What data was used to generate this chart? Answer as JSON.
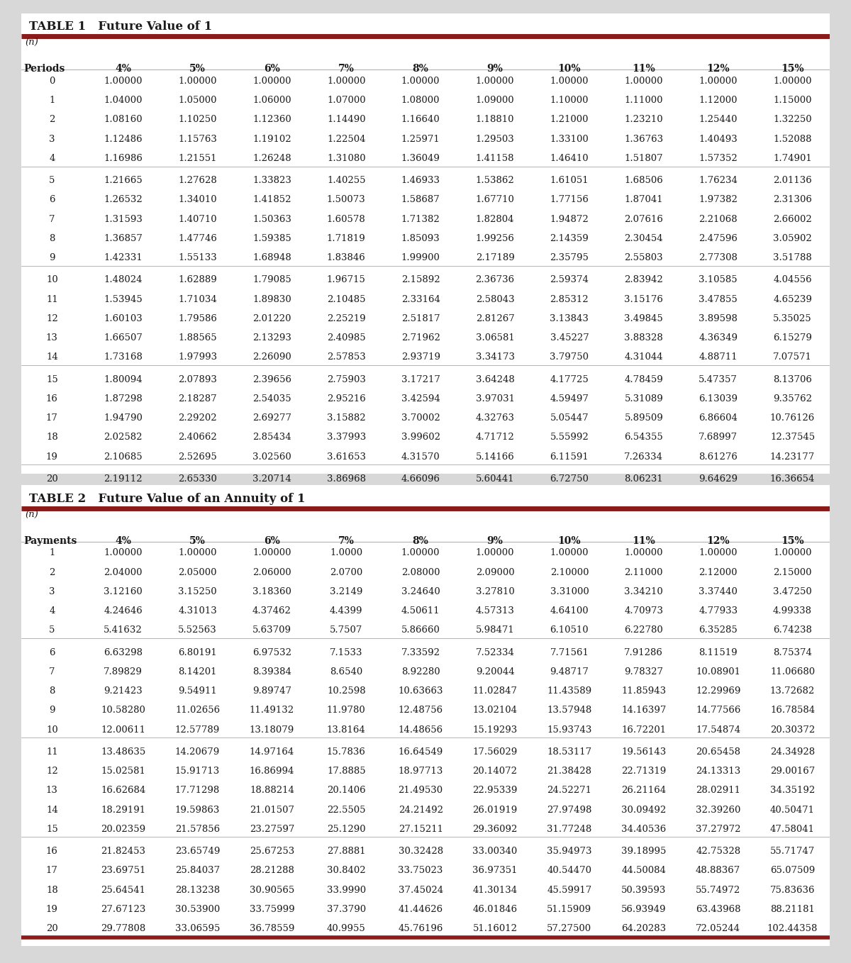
{
  "table1_title": "TABLE 1   Future Value of 1",
  "table2_title": "TABLE 2   Future Value of an Annuity of 1",
  "col_header_label1": "Periods",
  "col_header_label2": "Payments",
  "columns": [
    "4%",
    "5%",
    "6%",
    "7%",
    "8%",
    "9%",
    "10%",
    "11%",
    "12%",
    "15%"
  ],
  "table1_rows": [
    [
      0,
      "1.00000",
      "1.00000",
      "1.00000",
      "1.00000",
      "1.00000",
      "1.00000",
      "1.00000",
      "1.00000",
      "1.00000",
      "1.00000"
    ],
    [
      1,
      "1.04000",
      "1.05000",
      "1.06000",
      "1.07000",
      "1.08000",
      "1.09000",
      "1.10000",
      "1.11000",
      "1.12000",
      "1.15000"
    ],
    [
      2,
      "1.08160",
      "1.10250",
      "1.12360",
      "1.14490",
      "1.16640",
      "1.18810",
      "1.21000",
      "1.23210",
      "1.25440",
      "1.32250"
    ],
    [
      3,
      "1.12486",
      "1.15763",
      "1.19102",
      "1.22504",
      "1.25971",
      "1.29503",
      "1.33100",
      "1.36763",
      "1.40493",
      "1.52088"
    ],
    [
      4,
      "1.16986",
      "1.21551",
      "1.26248",
      "1.31080",
      "1.36049",
      "1.41158",
      "1.46410",
      "1.51807",
      "1.57352",
      "1.74901"
    ],
    [
      5,
      "1.21665",
      "1.27628",
      "1.33823",
      "1.40255",
      "1.46933",
      "1.53862",
      "1.61051",
      "1.68506",
      "1.76234",
      "2.01136"
    ],
    [
      6,
      "1.26532",
      "1.34010",
      "1.41852",
      "1.50073",
      "1.58687",
      "1.67710",
      "1.77156",
      "1.87041",
      "1.97382",
      "2.31306"
    ],
    [
      7,
      "1.31593",
      "1.40710",
      "1.50363",
      "1.60578",
      "1.71382",
      "1.82804",
      "1.94872",
      "2.07616",
      "2.21068",
      "2.66002"
    ],
    [
      8,
      "1.36857",
      "1.47746",
      "1.59385",
      "1.71819",
      "1.85093",
      "1.99256",
      "2.14359",
      "2.30454",
      "2.47596",
      "3.05902"
    ],
    [
      9,
      "1.42331",
      "1.55133",
      "1.68948",
      "1.83846",
      "1.99900",
      "2.17189",
      "2.35795",
      "2.55803",
      "2.77308",
      "3.51788"
    ],
    [
      10,
      "1.48024",
      "1.62889",
      "1.79085",
      "1.96715",
      "2.15892",
      "2.36736",
      "2.59374",
      "2.83942",
      "3.10585",
      "4.04556"
    ],
    [
      11,
      "1.53945",
      "1.71034",
      "1.89830",
      "2.10485",
      "2.33164",
      "2.58043",
      "2.85312",
      "3.15176",
      "3.47855",
      "4.65239"
    ],
    [
      12,
      "1.60103",
      "1.79586",
      "2.01220",
      "2.25219",
      "2.51817",
      "2.81267",
      "3.13843",
      "3.49845",
      "3.89598",
      "5.35025"
    ],
    [
      13,
      "1.66507",
      "1.88565",
      "2.13293",
      "2.40985",
      "2.71962",
      "3.06581",
      "3.45227",
      "3.88328",
      "4.36349",
      "6.15279"
    ],
    [
      14,
      "1.73168",
      "1.97993",
      "2.26090",
      "2.57853",
      "2.93719",
      "3.34173",
      "3.79750",
      "4.31044",
      "4.88711",
      "7.07571"
    ],
    [
      15,
      "1.80094",
      "2.07893",
      "2.39656",
      "2.75903",
      "3.17217",
      "3.64248",
      "4.17725",
      "4.78459",
      "5.47357",
      "8.13706"
    ],
    [
      16,
      "1.87298",
      "2.18287",
      "2.54035",
      "2.95216",
      "3.42594",
      "3.97031",
      "4.59497",
      "5.31089",
      "6.13039",
      "9.35762"
    ],
    [
      17,
      "1.94790",
      "2.29202",
      "2.69277",
      "3.15882",
      "3.70002",
      "4.32763",
      "5.05447",
      "5.89509",
      "6.86604",
      "10.76126"
    ],
    [
      18,
      "2.02582",
      "2.40662",
      "2.85434",
      "3.37993",
      "3.99602",
      "4.71712",
      "5.55992",
      "6.54355",
      "7.68997",
      "12.37545"
    ],
    [
      19,
      "2.10685",
      "2.52695",
      "3.02560",
      "3.61653",
      "4.31570",
      "5.14166",
      "6.11591",
      "7.26334",
      "8.61276",
      "14.23177"
    ],
    [
      20,
      "2.19112",
      "2.65330",
      "3.20714",
      "3.86968",
      "4.66096",
      "5.60441",
      "6.72750",
      "8.06231",
      "9.64629",
      "16.36654"
    ]
  ],
  "table2_rows": [
    [
      1,
      "1.00000",
      "1.00000",
      "1.00000",
      "1.0000",
      "1.00000",
      "1.00000",
      "1.00000",
      "1.00000",
      "1.00000",
      "1.00000"
    ],
    [
      2,
      "2.04000",
      "2.05000",
      "2.06000",
      "2.0700",
      "2.08000",
      "2.09000",
      "2.10000",
      "2.11000",
      "2.12000",
      "2.15000"
    ],
    [
      3,
      "3.12160",
      "3.15250",
      "3.18360",
      "3.2149",
      "3.24640",
      "3.27810",
      "3.31000",
      "3.34210",
      "3.37440",
      "3.47250"
    ],
    [
      4,
      "4.24646",
      "4.31013",
      "4.37462",
      "4.4399",
      "4.50611",
      "4.57313",
      "4.64100",
      "4.70973",
      "4.77933",
      "4.99338"
    ],
    [
      5,
      "5.41632",
      "5.52563",
      "5.63709",
      "5.7507",
      "5.86660",
      "5.98471",
      "6.10510",
      "6.22780",
      "6.35285",
      "6.74238"
    ],
    [
      6,
      "6.63298",
      "6.80191",
      "6.97532",
      "7.1533",
      "7.33592",
      "7.52334",
      "7.71561",
      "7.91286",
      "8.11519",
      "8.75374"
    ],
    [
      7,
      "7.89829",
      "8.14201",
      "8.39384",
      "8.6540",
      "8.92280",
      "9.20044",
      "9.48717",
      "9.78327",
      "10.08901",
      "11.06680"
    ],
    [
      8,
      "9.21423",
      "9.54911",
      "9.89747",
      "10.2598",
      "10.63663",
      "11.02847",
      "11.43589",
      "11.85943",
      "12.29969",
      "13.72682"
    ],
    [
      9,
      "10.58280",
      "11.02656",
      "11.49132",
      "11.9780",
      "12.48756",
      "13.02104",
      "13.57948",
      "14.16397",
      "14.77566",
      "16.78584"
    ],
    [
      10,
      "12.00611",
      "12.57789",
      "13.18079",
      "13.8164",
      "14.48656",
      "15.19293",
      "15.93743",
      "16.72201",
      "17.54874",
      "20.30372"
    ],
    [
      11,
      "13.48635",
      "14.20679",
      "14.97164",
      "15.7836",
      "16.64549",
      "17.56029",
      "18.53117",
      "19.56143",
      "20.65458",
      "24.34928"
    ],
    [
      12,
      "15.02581",
      "15.91713",
      "16.86994",
      "17.8885",
      "18.97713",
      "20.14072",
      "21.38428",
      "22.71319",
      "24.13313",
      "29.00167"
    ],
    [
      13,
      "16.62684",
      "17.71298",
      "18.88214",
      "20.1406",
      "21.49530",
      "22.95339",
      "24.52271",
      "26.21164",
      "28.02911",
      "34.35192"
    ],
    [
      14,
      "18.29191",
      "19.59863",
      "21.01507",
      "22.5505",
      "24.21492",
      "26.01919",
      "27.97498",
      "30.09492",
      "32.39260",
      "40.50471"
    ],
    [
      15,
      "20.02359",
      "21.57856",
      "23.27597",
      "25.1290",
      "27.15211",
      "29.36092",
      "31.77248",
      "34.40536",
      "37.27972",
      "47.58041"
    ],
    [
      16,
      "21.82453",
      "23.65749",
      "25.67253",
      "27.8881",
      "30.32428",
      "33.00340",
      "35.94973",
      "39.18995",
      "42.75328",
      "55.71747"
    ],
    [
      17,
      "23.69751",
      "25.84037",
      "28.21288",
      "30.8402",
      "33.75023",
      "36.97351",
      "40.54470",
      "44.50084",
      "48.88367",
      "65.07509"
    ],
    [
      18,
      "25.64541",
      "28.13238",
      "30.90565",
      "33.9990",
      "37.45024",
      "41.30134",
      "45.59917",
      "50.39593",
      "55.74972",
      "75.83636"
    ],
    [
      19,
      "27.67123",
      "30.53900",
      "33.75999",
      "37.3790",
      "41.44626",
      "46.01846",
      "51.15909",
      "56.93949",
      "63.43968",
      "88.21181"
    ],
    [
      20,
      "29.77808",
      "33.06595",
      "36.78559",
      "40.9955",
      "45.76196",
      "51.16012",
      "57.27500",
      "64.20283",
      "72.05244",
      "102.44358"
    ]
  ],
  "red_line_color": "#8B1A1A",
  "text_color": "#1a1a1a",
  "page_bg": "#d8d8d8",
  "card_bg": "#ffffff",
  "sep_line_color": "#aaaaaa",
  "bottom_line_color": "#8B1A1A"
}
